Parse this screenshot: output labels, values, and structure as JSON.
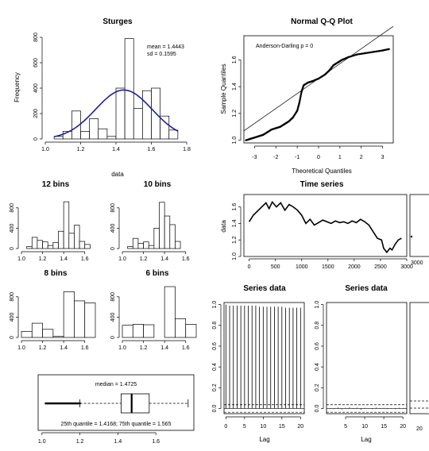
{
  "charts": {
    "sturges": {
      "type": "bar",
      "title": "Sturges",
      "xlabel": "data",
      "ylabel": "Frequency",
      "annotation_mean": "mean =  1.4443",
      "annotation_sd": "sd =  0.1595",
      "bins": [
        1.05,
        1.1,
        1.15,
        1.2,
        1.25,
        1.3,
        1.35,
        1.4,
        1.45,
        1.5,
        1.55,
        1.6,
        1.65,
        1.7,
        1.75
      ],
      "values": [
        20,
        60,
        220,
        60,
        160,
        80,
        20,
        400,
        790,
        240,
        380,
        400,
        180,
        70
      ],
      "curve_mean": 1.4443,
      "curve_sd": 0.1595,
      "xlim": [
        1.0,
        1.8
      ],
      "ylim": [
        0,
        800
      ],
      "xticks": [
        "1.0",
        "1.2",
        "1.4",
        "1.6",
        "1.8"
      ],
      "yticks": [
        "0",
        "200",
        "400",
        "600",
        "800"
      ]
    },
    "qq": {
      "type": "scatter",
      "title": "Normal Q-Q Plot",
      "annotation": "Anderson-Darling p =  0",
      "xlabel": "Theoretical Quantiles",
      "ylabel": "Sample Quantiles",
      "xlim": [
        -3.5,
        3.5
      ],
      "ylim": [
        0.98,
        1.78
      ],
      "xticks": [
        "-3",
        "-2",
        "-1",
        "0",
        "1",
        "2",
        "3"
      ],
      "yticks": [
        "1.0",
        "1.2",
        "1.4",
        "1.6"
      ],
      "sample_points": [
        [
          -3.4,
          1.0
        ],
        [
          -3.2,
          1.01
        ],
        [
          -3.0,
          1.02
        ],
        [
          -2.8,
          1.03
        ],
        [
          -2.6,
          1.04
        ],
        [
          -2.4,
          1.06
        ],
        [
          -2.2,
          1.08
        ],
        [
          -2.0,
          1.09
        ],
        [
          -1.8,
          1.1
        ],
        [
          -1.6,
          1.12
        ],
        [
          -1.4,
          1.14
        ],
        [
          -1.2,
          1.17
        ],
        [
          -1.0,
          1.22
        ],
        [
          -0.9,
          1.28
        ],
        [
          -0.8,
          1.36
        ],
        [
          -0.7,
          1.41
        ],
        [
          -0.5,
          1.43
        ],
        [
          -0.3,
          1.44
        ],
        [
          0.0,
          1.46
        ],
        [
          0.3,
          1.49
        ],
        [
          0.5,
          1.52
        ],
        [
          0.7,
          1.56
        ],
        [
          0.9,
          1.58
        ],
        [
          1.1,
          1.6
        ],
        [
          1.4,
          1.62
        ],
        [
          1.8,
          1.64
        ],
        [
          2.2,
          1.65
        ],
        [
          2.6,
          1.66
        ],
        [
          3.0,
          1.67
        ],
        [
          3.3,
          1.68
        ]
      ],
      "line": [
        [
          -3.5,
          1.07
        ],
        [
          3.5,
          1.85
        ]
      ]
    },
    "bins12": {
      "type": "bar",
      "title": "12 bins",
      "bins": [
        1.0,
        1.05,
        1.1,
        1.15,
        1.2,
        1.25,
        1.3,
        1.35,
        1.4,
        1.45,
        1.5,
        1.55,
        1.6,
        1.65,
        1.7
      ],
      "values": [
        0,
        40,
        220,
        160,
        130,
        60,
        120,
        340,
        920,
        300,
        460,
        140,
        80,
        0
      ],
      "xlim": [
        1.0,
        1.7
      ],
      "ylim": [
        0,
        1000
      ],
      "xticks": [
        "1.0",
        "1.2",
        "1.4",
        "1.6"
      ],
      "yticks": [
        "0",
        "400",
        "800"
      ]
    },
    "bins10": {
      "type": "bar",
      "title": "10 bins",
      "bins": [
        1.0,
        1.05,
        1.1,
        1.15,
        1.2,
        1.25,
        1.3,
        1.35,
        1.4,
        1.45,
        1.5,
        1.55,
        1.6,
        1.65,
        1.7
      ],
      "values": [
        0,
        40,
        200,
        100,
        130,
        60,
        400,
        910,
        640,
        470,
        140,
        0,
        0,
        0
      ],
      "xlim": [
        1.0,
        1.7
      ],
      "ylim": [
        0,
        1000
      ],
      "xticks": [
        "1.0",
        "1.2",
        "1.4",
        "1.6"
      ],
      "yticks": [
        "0",
        "400",
        "800"
      ]
    },
    "bins8": {
      "type": "bar",
      "title": "8 bins",
      "bins": [
        1.0,
        1.1,
        1.2,
        1.3,
        1.4,
        1.5,
        1.6,
        1.7
      ],
      "values": [
        120,
        280,
        160,
        20,
        900,
        720,
        680
      ],
      "xlim": [
        1.0,
        1.7
      ],
      "ylim": [
        0,
        1000
      ],
      "xticks": [
        "1.0",
        "1.2",
        "1.4",
        "1.6"
      ],
      "yticks": [
        "0",
        "400",
        "800"
      ]
    },
    "bins6": {
      "type": "bar",
      "title": "6 bins",
      "bins": [
        1.0,
        1.1,
        1.2,
        1.3,
        1.4,
        1.5,
        1.6,
        1.7
      ],
      "values": [
        240,
        260,
        250,
        0,
        1000,
        370,
        260
      ],
      "xlim": [
        1.0,
        1.7
      ],
      "ylim": [
        0,
        1000
      ],
      "xticks": [
        "1.0",
        "1.2",
        "1.4",
        "1.6"
      ],
      "yticks": [
        "0",
        "400",
        "800"
      ]
    },
    "timeseries": {
      "type": "line",
      "title": "Time series",
      "ylabel": "data",
      "xlim": [
        -100,
        3000
      ],
      "ylim": [
        1.0,
        1.75
      ],
      "xticks": [
        "0",
        "500",
        "1000",
        "1500",
        "2000",
        "2500",
        "3000"
      ],
      "yticks": [
        "1.0",
        "1.2",
        "1.4",
        "1.6"
      ],
      "points": [
        [
          0,
          1.42
        ],
        [
          80,
          1.5
        ],
        [
          160,
          1.55
        ],
        [
          240,
          1.6
        ],
        [
          320,
          1.65
        ],
        [
          380,
          1.58
        ],
        [
          440,
          1.66
        ],
        [
          520,
          1.6
        ],
        [
          600,
          1.65
        ],
        [
          680,
          1.56
        ],
        [
          760,
          1.63
        ],
        [
          840,
          1.6
        ],
        [
          920,
          1.56
        ],
        [
          1000,
          1.5
        ],
        [
          1080,
          1.4
        ],
        [
          1160,
          1.45
        ],
        [
          1240,
          1.38
        ],
        [
          1320,
          1.41
        ],
        [
          1400,
          1.44
        ],
        [
          1480,
          1.42
        ],
        [
          1560,
          1.4
        ],
        [
          1640,
          1.43
        ],
        [
          1720,
          1.41
        ],
        [
          1800,
          1.42
        ],
        [
          1880,
          1.4
        ],
        [
          1960,
          1.43
        ],
        [
          2040,
          1.41
        ],
        [
          2120,
          1.45
        ],
        [
          2200,
          1.42
        ],
        [
          2280,
          1.38
        ],
        [
          2360,
          1.3
        ],
        [
          2440,
          1.22
        ],
        [
          2520,
          1.2
        ],
        [
          2560,
          1.1
        ],
        [
          2620,
          1.05
        ],
        [
          2680,
          1.1
        ],
        [
          2720,
          1.08
        ],
        [
          2780,
          1.15
        ],
        [
          2840,
          1.2
        ],
        [
          2900,
          1.22
        ]
      ],
      "side_tick": "3000"
    },
    "acf1": {
      "type": "bar",
      "title": "Series  data",
      "xlabel": "Lag",
      "lags": [
        0,
        1,
        2,
        3,
        4,
        5,
        6,
        7,
        8,
        9,
        10,
        11,
        12,
        13,
        14,
        15,
        16,
        17,
        18,
        19,
        20
      ],
      "values": [
        1.0,
        0.99,
        0.99,
        0.99,
        0.99,
        0.99,
        0.99,
        0.99,
        0.99,
        0.98,
        0.98,
        0.98,
        0.98,
        0.98,
        0.98,
        0.98,
        0.97,
        0.97,
        0.97,
        0.97,
        0.97
      ],
      "ci": 0.036,
      "xlim": [
        -0.5,
        21
      ],
      "ylim": [
        -0.05,
        1.02
      ],
      "xticks": [
        "0",
        "5",
        "10",
        "15",
        "20"
      ],
      "yticks": [
        "0.0",
        "0.2",
        "0.4",
        "0.6",
        "0.8",
        "1.0"
      ]
    },
    "acf2": {
      "type": "bar",
      "title": "Series  data",
      "xlabel": "Lag",
      "lags": [
        1,
        2,
        3,
        4,
        5,
        6,
        7,
        8,
        9,
        10,
        11,
        12,
        13,
        14,
        15,
        16,
        17,
        18,
        19,
        20
      ],
      "values": [
        0.004,
        -0.006,
        0.01,
        -0.008,
        0.006,
        0.012,
        -0.004,
        0.008,
        -0.01,
        0.005,
        0.003,
        -0.007,
        0.009,
        -0.003,
        0.006,
        -0.005,
        0.004,
        -0.006,
        0.007,
        -0.002
      ],
      "ci": 0.036,
      "xlim": [
        0,
        21
      ],
      "ylim": [
        -0.05,
        1.02
      ],
      "xticks": [
        "5",
        "10",
        "15",
        "20"
      ],
      "yticks": [
        "0.0",
        "0.2",
        "0.4",
        "0.6",
        "0.8",
        "1.0"
      ],
      "side_tick": "20"
    },
    "boxplot": {
      "type": "box",
      "median_label": "median =  1.4725",
      "quartile_label": "25th quantile =  1.4168; 75th quantile =  1.565",
      "min": 1.02,
      "q1": 1.4168,
      "median": 1.4725,
      "q3": 1.565,
      "whisker_low": 1.2,
      "whisker_high": 1.77,
      "xlim": [
        0.98,
        1.8
      ],
      "xticks": [
        "1.0",
        "1.2",
        "1.4",
        "1.6"
      ]
    }
  }
}
